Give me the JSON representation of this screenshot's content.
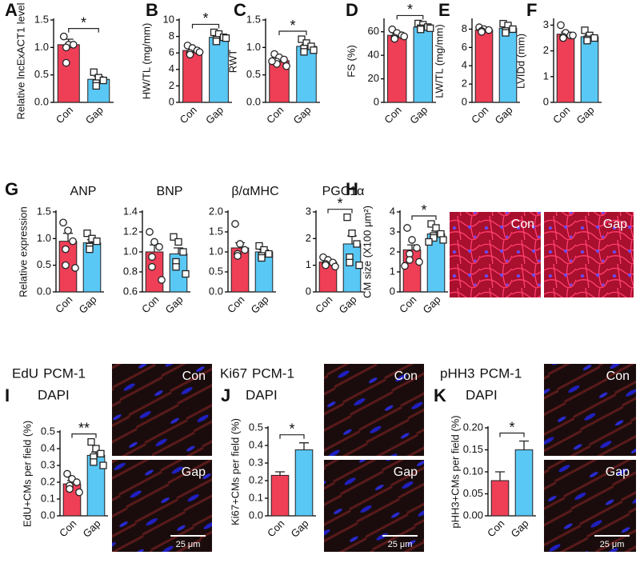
{
  "chart_data": [
    {
      "type": "bar",
      "panel": "A",
      "ylabel": "Relative lncExACT1 level",
      "categories": [
        "Con",
        "Gap"
      ],
      "values": [
        1.05,
        0.42
      ],
      "errors": [
        0.1,
        0.05
      ],
      "points": [
        [
          1.2,
          1.05,
          1.05,
          1.0,
          0.72
        ],
        [
          0.55,
          0.45,
          0.4,
          0.35,
          0.3
        ]
      ],
      "colors": [
        "#ee3f57",
        "#5ac8f5"
      ],
      "significance": "*",
      "ylim": [
        0,
        1.5
      ],
      "yticks": [
        {
          "value": 0,
          "label": "0.0"
        },
        0.5,
        {
          "value": 1,
          "label": "1.0"
        },
        1.5
      ]
    },
    {
      "type": "bar",
      "panel": "B",
      "ylabel": "HW/TL (mg/mm)",
      "categories": [
        "Con",
        "Gap"
      ],
      "values": [
        6.3,
        7.9
      ],
      "errors": [
        0.2,
        0.2
      ],
      "points": [
        [
          6.9,
          6.6,
          6.3,
          6.0,
          5.8,
          6.1
        ],
        [
          8.5,
          8.3,
          7.9,
          7.6,
          7.4,
          7.8
        ]
      ],
      "colors": [
        "#ee3f57",
        "#5ac8f5"
      ],
      "significance": "*",
      "ylim": [
        0,
        10
      ],
      "yticks": [
        0,
        2,
        4,
        6,
        8,
        10
      ]
    },
    {
      "type": "bar",
      "panel": "C",
      "ylabel": "RWT",
      "categories": [
        "Con",
        "Gap"
      ],
      "values": [
        0.76,
        1.02
      ],
      "errors": [
        0.03,
        0.04
      ],
      "points": [
        [
          0.88,
          0.82,
          0.78,
          0.74,
          0.7,
          0.66,
          0.75
        ],
        [
          1.15,
          1.08,
          1.02,
          0.98,
          0.92,
          0.95
        ]
      ],
      "colors": [
        "#ee3f57",
        "#5ac8f5"
      ],
      "significance": "*",
      "ylim": [
        0,
        1.5
      ],
      "yticks": [
        {
          "value": 0,
          "label": "0.0"
        },
        0.5,
        {
          "value": 1,
          "label": "1.0"
        },
        1.5
      ]
    },
    {
      "type": "bar",
      "panel": "D",
      "ylabel": "FS (%)",
      "categories": [
        "Con",
        "Gap"
      ],
      "values": [
        57,
        64
      ],
      "errors": [
        1.5,
        1
      ],
      "points": [
        [
          62,
          59,
          57,
          55,
          54,
          56
        ],
        [
          67,
          66,
          64,
          63,
          62,
          63
        ]
      ],
      "colors": [
        "#ee3f57",
        "#5ac8f5"
      ],
      "significance": "*",
      "ylim": [
        0,
        70
      ],
      "yticks": [
        0,
        20,
        40,
        60
      ]
    },
    {
      "type": "bar",
      "panel": "E",
      "ylabel": "LW/TL (mg/mm)",
      "categories": [
        "Con",
        "Gap"
      ],
      "values": [
        7.9,
        8.1
      ],
      "errors": [
        0.1,
        0.2
      ],
      "points": [
        [
          8.2,
          8.0,
          7.9,
          7.8,
          7.7
        ],
        [
          8.6,
          8.4,
          8.0,
          7.8,
          7.6
        ]
      ],
      "colors": [
        "#ee3f57",
        "#5ac8f5"
      ],
      "ylim": [
        0,
        9
      ],
      "yticks": [
        0,
        2,
        4,
        6,
        8
      ]
    },
    {
      "type": "bar",
      "panel": "F",
      "ylabel": "LVIDd (mm)",
      "categories": [
        "Con",
        "Gap"
      ],
      "values": [
        2.65,
        2.55
      ],
      "errors": [
        0.08,
        0.07
      ],
      "points": [
        [
          3.0,
          2.7,
          2.6,
          2.55,
          2.5,
          2.6
        ],
        [
          2.8,
          2.6,
          2.5,
          2.45,
          2.4
        ]
      ],
      "colors": [
        "#ee3f57",
        "#5ac8f5"
      ],
      "ylim": [
        0,
        3.2
      ],
      "yticks": [
        0,
        1,
        2,
        3
      ]
    },
    {
      "type": "bar",
      "panel": "G",
      "title": "ANP",
      "ylabel": "Relative expression",
      "categories": [
        "Con",
        "Gap"
      ],
      "values": [
        0.95,
        0.92
      ],
      "errors": [
        0.15,
        0.06
      ],
      "points": [
        [
          1.3,
          1.15,
          0.95,
          0.8,
          0.5,
          0.45
        ],
        [
          1.1,
          1.0,
          0.95,
          0.85,
          0.8
        ]
      ],
      "colors": [
        "#ee3f57",
        "#5ac8f5"
      ],
      "ylim": [
        0,
        1.5
      ],
      "yticks": [
        {
          "value": 0,
          "label": "0.0"
        },
        0.5,
        {
          "value": 1,
          "label": "1.0"
        },
        1.5
      ]
    },
    {
      "type": "bar",
      "title": "BNP",
      "categories": [
        "Con",
        "Gap"
      ],
      "values": [
        1.0,
        0.98
      ],
      "errors": [
        0.07,
        0.06
      ],
      "points": [
        [
          1.2,
          1.1,
          1.05,
          0.95,
          0.85,
          0.72
        ],
        [
          1.15,
          1.1,
          1.0,
          0.9,
          0.85,
          0.78
        ]
      ],
      "colors": [
        "#ee3f57",
        "#5ac8f5"
      ],
      "ylim": [
        0.6,
        1.4
      ],
      "yticks": [
        0.6,
        0.8,
        {
          "value": 1,
          "label": "1.0"
        },
        1.2,
        1.4
      ]
    },
    {
      "type": "bar",
      "title": "β/αMHC",
      "categories": [
        "Con",
        "Gap"
      ],
      "values": [
        1.1,
        1.0
      ],
      "errors": [
        0.13,
        0.05
      ],
      "points": [
        [
          1.7,
          1.2,
          1.05,
          0.95,
          0.9
        ],
        [
          1.15,
          1.05,
          0.95,
          0.9,
          0.85
        ]
      ],
      "colors": [
        "#ee3f57",
        "#5ac8f5"
      ],
      "ylim": [
        0,
        2
      ],
      "yticks": [
        {
          "value": 0,
          "label": "0.0"
        },
        0.5,
        {
          "value": 1,
          "label": "1.0"
        },
        1.5,
        {
          "value": 2,
          "label": "2.0"
        }
      ]
    },
    {
      "type": "bar",
      "title": "PGC1α",
      "categories": [
        "Con",
        "Gap"
      ],
      "values": [
        1.12,
        1.8
      ],
      "errors": [
        0.06,
        0.3
      ],
      "points": [
        [
          1.3,
          1.2,
          1.1,
          1.05,
          1.0,
          0.95
        ],
        [
          2.8,
          2.2,
          1.8,
          1.3,
          1.1,
          1.0
        ]
      ],
      "colors": [
        "#ee3f57",
        "#5ac8f5"
      ],
      "significance": "*",
      "ylim": [
        0,
        3
      ],
      "yticks": [
        0,
        1,
        2,
        3
      ]
    },
    {
      "type": "bar",
      "panel": "H",
      "ylabel": "CM size (X100 μm²)",
      "categories": [
        "Con",
        "Gap"
      ],
      "values": [
        2.1,
        2.9
      ],
      "errors": [
        0.25,
        0.15
      ],
      "points": [
        [
          3.2,
          2.6,
          2.2,
          1.9,
          1.6,
          1.5,
          1.3
        ],
        [
          3.4,
          3.2,
          2.9,
          2.8,
          2.7,
          2.6,
          2.5
        ]
      ],
      "colors": [
        "#ee3f57",
        "#5ac8f5"
      ],
      "significance": "*",
      "ylim": [
        0,
        4
      ],
      "yticks": [
        0,
        1,
        2,
        3,
        4
      ],
      "images": [
        {
          "label": "Con"
        },
        {
          "label": "Gap"
        }
      ]
    },
    {
      "type": "bar",
      "panel": "I",
      "title_lines": [
        [
          {
            "text": "EdU",
            "color": "#22cc22"
          },
          {
            "text": "PCM-1",
            "color": "#e8102a"
          }
        ],
        [
          {
            "text": "DAPI",
            "color": "#1a1aee"
          }
        ]
      ],
      "ylabel": "EdU+CMs per field (%)",
      "categories": [
        "Con",
        "Gap"
      ],
      "values": [
        0.19,
        0.36
      ],
      "errors": [
        0.02,
        0.02
      ],
      "points": [
        [
          0.25,
          0.22,
          0.2,
          0.18,
          0.16,
          0.14
        ],
        [
          0.44,
          0.4,
          0.37,
          0.35,
          0.32,
          0.3
        ]
      ],
      "colors": [
        "#ee3f57",
        "#5ac8f5"
      ],
      "significance": "**",
      "ylim": [
        0,
        0.5
      ],
      "yticks": [
        {
          "value": 0,
          "label": "0.0"
        },
        0.1,
        0.2,
        0.3,
        0.4,
        0.5
      ],
      "images": [
        {
          "label": "Con"
        },
        {
          "label": "Gap",
          "scale_bar": "25 μm"
        }
      ]
    },
    {
      "type": "bar",
      "panel": "J",
      "title_lines": [
        [
          {
            "text": "Ki67",
            "color": "#22cc22"
          },
          {
            "text": "PCM-1",
            "color": "#e8102a"
          }
        ],
        [
          {
            "text": "DAPI",
            "color": "#1a1aee"
          }
        ]
      ],
      "ylabel": "Ki67+CMs per field (%)",
      "categories": [
        "Con",
        "Gap"
      ],
      "values": [
        0.23,
        0.375
      ],
      "errors": [
        0.02,
        0.04
      ],
      "colors": [
        "#ee3f57",
        "#5ac8f5"
      ],
      "significance": "*",
      "ylim": [
        0,
        0.5
      ],
      "yticks": [
        {
          "value": 0,
          "label": "0.0"
        },
        0.1,
        0.2,
        0.3,
        0.4,
        0.5
      ],
      "images": [
        {
          "label": "Con"
        },
        {
          "label": "Gap",
          "scale_bar": "25 μm"
        }
      ]
    },
    {
      "type": "bar",
      "panel": "K",
      "title_lines": [
        [
          {
            "text": "pHH3",
            "color": "#22cc22"
          },
          {
            "text": "PCM-1",
            "color": "#e8102a"
          }
        ],
        [
          {
            "text": "DAPI",
            "color": "#1a1aee"
          }
        ]
      ],
      "ylabel": "pHH3+CMs per field (%)",
      "categories": [
        "Con",
        "Gap"
      ],
      "values": [
        0.08,
        0.15
      ],
      "errors": [
        0.02,
        0.02
      ],
      "colors": [
        "#ee3f57",
        "#5ac8f5"
      ],
      "significance": "*",
      "ylim": [
        0,
        0.2
      ],
      "yticks": [
        {
          "value": 0,
          "label": "0.00"
        },
        0.05,
        {
          "value": 0.1,
          "label": "0.10"
        },
        0.15,
        {
          "value": 0.2,
          "label": "0.20"
        }
      ],
      "images": [
        {
          "label": "Con"
        },
        {
          "label": "Gap",
          "scale_bar": "25 μm"
        }
      ]
    }
  ]
}
